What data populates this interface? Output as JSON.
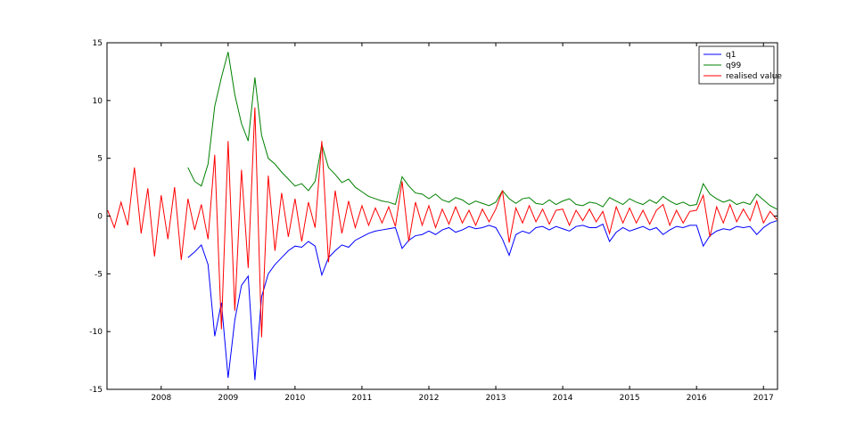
{
  "chart_data": {
    "type": "line",
    "x": [
      2007.2,
      2007.3,
      2007.4,
      2007.5,
      2007.6,
      2007.7,
      2007.8,
      2007.9,
      2008.0,
      2008.1,
      2008.2,
      2008.3,
      2008.4,
      2008.5,
      2008.6,
      2008.7,
      2008.8,
      2008.9,
      2009.0,
      2009.1,
      2009.2,
      2009.3,
      2009.4,
      2009.5,
      2009.6,
      2009.7,
      2009.8,
      2009.9,
      2010.0,
      2010.1,
      2010.2,
      2010.3,
      2010.4,
      2010.5,
      2010.6,
      2010.7,
      2010.8,
      2010.9,
      2011.0,
      2011.1,
      2011.2,
      2011.3,
      2011.4,
      2011.5,
      2011.6,
      2011.7,
      2011.8,
      2011.9,
      2012.0,
      2012.1,
      2012.2,
      2012.3,
      2012.4,
      2012.5,
      2012.6,
      2012.7,
      2012.8,
      2012.9,
      2013.0,
      2013.1,
      2013.2,
      2013.3,
      2013.4,
      2013.5,
      2013.6,
      2013.7,
      2013.8,
      2013.9,
      2014.0,
      2014.1,
      2014.2,
      2014.3,
      2014.4,
      2014.5,
      2014.6,
      2014.7,
      2014.8,
      2014.9,
      2015.0,
      2015.1,
      2015.2,
      2015.3,
      2015.4,
      2015.5,
      2015.6,
      2015.7,
      2015.8,
      2015.9,
      2016.0,
      2016.1,
      2016.2,
      2016.3,
      2016.4,
      2016.5,
      2016.6,
      2016.7,
      2016.8,
      2016.9,
      2017.0,
      2017.1,
      2017.2
    ],
    "series": [
      {
        "name": "q1",
        "color": "#0000ff",
        "values": [
          null,
          null,
          null,
          null,
          null,
          null,
          null,
          null,
          null,
          null,
          null,
          null,
          -3.6,
          -3.1,
          -2.5,
          -4.2,
          -10.4,
          -7.5,
          -14.0,
          -9.0,
          -6.0,
          -5.2,
          -14.2,
          -7.0,
          -5.0,
          -4.2,
          -3.6,
          -3.0,
          -2.6,
          -2.7,
          -2.2,
          -2.6,
          -5.1,
          -3.6,
          -3.0,
          -2.5,
          -2.7,
          -2.1,
          -1.8,
          -1.5,
          -1.3,
          -1.2,
          -1.1,
          -1.0,
          -2.8,
          -2.1,
          -1.7,
          -1.6,
          -1.3,
          -1.6,
          -1.2,
          -1.0,
          -1.4,
          -1.2,
          -0.9,
          -1.1,
          -1.0,
          -0.8,
          -1.0,
          -2.0,
          -3.4,
          -1.6,
          -1.3,
          -1.5,
          -1.0,
          -0.9,
          -1.2,
          -0.9,
          -1.1,
          -1.3,
          -0.9,
          -0.8,
          -1.0,
          -1.0,
          -0.7,
          -2.2,
          -1.4,
          -1.0,
          -1.3,
          -1.1,
          -0.9,
          -1.2,
          -1.0,
          -1.6,
          -1.2,
          -0.9,
          -1.0,
          -0.8,
          -0.8,
          -2.6,
          -1.7,
          -1.3,
          -1.1,
          -1.2,
          -0.9,
          -1.0,
          -0.9,
          -1.6,
          -1.0,
          -0.6,
          -0.4
        ]
      },
      {
        "name": "q99",
        "color": "#008000",
        "values": [
          null,
          null,
          null,
          null,
          null,
          null,
          null,
          null,
          null,
          null,
          null,
          null,
          4.2,
          3.0,
          2.6,
          4.5,
          9.5,
          12.0,
          14.2,
          10.5,
          8.0,
          6.5,
          12.0,
          7.0,
          5.0,
          4.5,
          3.8,
          3.2,
          2.6,
          2.8,
          2.2,
          3.0,
          6.2,
          4.2,
          3.6,
          2.9,
          3.2,
          2.5,
          2.1,
          1.7,
          1.5,
          1.3,
          1.2,
          1.0,
          3.4,
          2.6,
          2.0,
          1.9,
          1.5,
          1.9,
          1.4,
          1.2,
          1.6,
          1.4,
          1.0,
          1.3,
          1.1,
          0.9,
          1.2,
          2.2,
          1.5,
          1.1,
          1.5,
          1.6,
          1.1,
          1.0,
          1.4,
          1.0,
          1.3,
          1.5,
          1.0,
          0.9,
          1.2,
          1.1,
          0.8,
          1.6,
          1.3,
          1.0,
          1.5,
          1.2,
          1.0,
          1.4,
          1.1,
          1.7,
          1.3,
          1.0,
          1.2,
          0.9,
          1.0,
          2.8,
          1.9,
          1.5,
          1.2,
          1.4,
          1.0,
          1.2,
          1.0,
          1.9,
          1.4,
          0.9,
          0.6
        ]
      },
      {
        "name": "realised value",
        "color": "#ff0000",
        "values": [
          0.5,
          -1.0,
          1.2,
          -0.8,
          4.2,
          -1.5,
          2.4,
          -3.5,
          1.8,
          -2.0,
          2.5,
          -3.8,
          1.5,
          -1.2,
          1.0,
          -2.0,
          5.3,
          -9.8,
          6.5,
          -8.2,
          4.0,
          -4.5,
          9.4,
          -10.5,
          3.5,
          -3.0,
          2.0,
          -1.8,
          1.5,
          -2.2,
          1.2,
          -1.0,
          6.5,
          -4.0,
          2.2,
          -1.5,
          1.3,
          -1.0,
          0.9,
          -0.8,
          0.7,
          -0.6,
          0.8,
          -0.9,
          3.0,
          -2.2,
          1.2,
          -0.8,
          0.9,
          -1.0,
          0.6,
          -0.7,
          0.8,
          -0.6,
          0.5,
          -0.8,
          0.6,
          -0.5,
          0.6,
          2.2,
          -2.3,
          0.7,
          -0.6,
          0.9,
          -0.5,
          0.6,
          -0.7,
          0.5,
          0.6,
          -0.8,
          0.5,
          -0.4,
          0.6,
          -0.5,
          0.4,
          -1.5,
          0.8,
          -0.6,
          0.7,
          -0.6,
          0.5,
          -0.7,
          0.5,
          1.0,
          -0.8,
          0.5,
          -0.6,
          0.4,
          0.5,
          1.8,
          -1.8,
          0.8,
          -0.6,
          1.0,
          -0.5,
          0.6,
          -0.4,
          1.3,
          -0.6,
          0.4,
          -0.3
        ]
      }
    ],
    "xlim": [
      2007.19,
      2017.21
    ],
    "xticks": [
      2008,
      2009,
      2010,
      2011,
      2012,
      2013,
      2014,
      2015,
      2016,
      2017
    ],
    "ylim": [
      -15,
      15
    ],
    "yticks": [
      -15,
      -10,
      -5,
      0,
      5,
      10,
      15
    ],
    "legend": "upper right"
  }
}
